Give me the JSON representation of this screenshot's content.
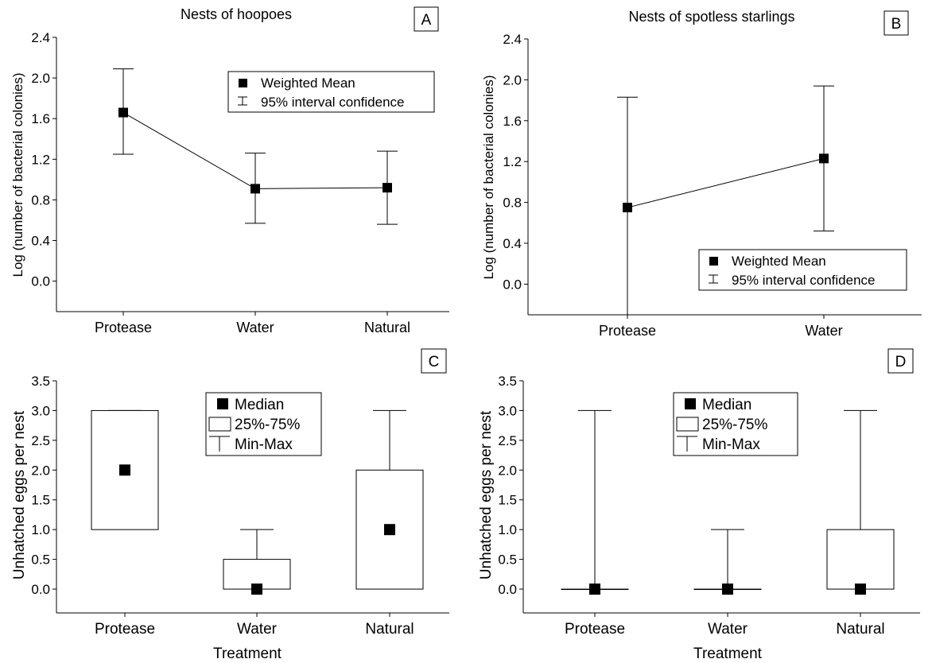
{
  "chart_data": [
    {
      "id": "A",
      "panel_label": "A",
      "type": "line",
      "title": "Nests of hoopoes",
      "ylabel": "Log (number of bacterial colonies)",
      "xlabel": "",
      "categories": [
        "Protease",
        "Water",
        "Natural"
      ],
      "ylim": [
        -0.3,
        2.4
      ],
      "yticks": [
        "2.4",
        "2.0",
        "1.6",
        "1.2",
        "0.8",
        "0.4",
        "0.0"
      ],
      "ytick_values": [
        2.4,
        2.0,
        1.6,
        1.2,
        0.8,
        0.4,
        0.0
      ],
      "series": [
        {
          "name": "Weighted Mean",
          "values": [
            1.66,
            0.91,
            0.92
          ],
          "ci_low": [
            1.25,
            0.57,
            0.56
          ],
          "ci_high": [
            2.09,
            1.26,
            1.28
          ]
        }
      ],
      "legend": {
        "position": "top-right",
        "items": [
          "Weighted Mean",
          "95% interval confidence"
        ]
      }
    },
    {
      "id": "B",
      "panel_label": "B",
      "type": "line",
      "title": "Nests of spotless starlings",
      "ylabel": "Log (number of bacterial colonies)",
      "xlabel": "",
      "categories": [
        "Protease",
        "Water"
      ],
      "ylim": [
        -0.3,
        2.4
      ],
      "yticks": [
        "2.4",
        "2.0",
        "1.6",
        "1.2",
        "0.8",
        "0.4",
        "0.0"
      ],
      "ytick_values": [
        2.4,
        2.0,
        1.6,
        1.2,
        0.8,
        0.4,
        0.0
      ],
      "series": [
        {
          "name": "Weighted Mean",
          "values": [
            0.75,
            1.23
          ],
          "ci_low": [
            -0.3,
            0.52
          ],
          "ci_high": [
            1.83,
            1.94
          ]
        }
      ],
      "legend": {
        "position": "bottom-right",
        "items": [
          "Weighted Mean",
          "95% interval confidence"
        ]
      }
    },
    {
      "id": "C",
      "panel_label": "C",
      "type": "box",
      "title": "",
      "ylabel": "Unhatched eggs per nest",
      "xlabel": "Treatment",
      "categories": [
        "Protease",
        "Water",
        "Natural"
      ],
      "ylim": [
        -0.4,
        3.5
      ],
      "yticks": [
        "3.5",
        "3.0",
        "2.5",
        "2.0",
        "1.5",
        "1.0",
        "0.5",
        "0.0"
      ],
      "ytick_values": [
        3.5,
        3.0,
        2.5,
        2.0,
        1.5,
        1.0,
        0.5,
        0.0
      ],
      "boxes": [
        {
          "median": 2,
          "q1": 1,
          "q3": 3,
          "min": 1,
          "max": 3
        },
        {
          "median": 0,
          "q1": 0,
          "q3": 0.5,
          "min": 0,
          "max": 1
        },
        {
          "median": 1,
          "q1": 0,
          "q3": 2,
          "min": 0,
          "max": 3
        }
      ],
      "legend": {
        "position": "top-center",
        "items": [
          "Median",
          "25%-75%",
          "Min-Max"
        ]
      }
    },
    {
      "id": "D",
      "panel_label": "D",
      "type": "box",
      "title": "",
      "ylabel": "Unhatched eggs per nest",
      "xlabel": "Treatment",
      "categories": [
        "Protease",
        "Water",
        "Natural"
      ],
      "ylim": [
        -0.4,
        3.5
      ],
      "yticks": [
        "3.5",
        "3.0",
        "2.5",
        "2.0",
        "1.5",
        "1.0",
        "0.5",
        "0.0"
      ],
      "ytick_values": [
        3.5,
        3.0,
        2.5,
        2.0,
        1.5,
        1.0,
        0.5,
        0.0
      ],
      "boxes": [
        {
          "median": 0,
          "q1": 0,
          "q3": 0,
          "min": 0,
          "max": 3
        },
        {
          "median": 0,
          "q1": 0,
          "q3": 0,
          "min": 0,
          "max": 1
        },
        {
          "median": 0,
          "q1": 0,
          "q3": 1,
          "min": 0,
          "max": 3
        }
      ],
      "legend": {
        "position": "top-center",
        "items": [
          "Median",
          "25%-75%",
          "Min-Max"
        ]
      }
    }
  ]
}
